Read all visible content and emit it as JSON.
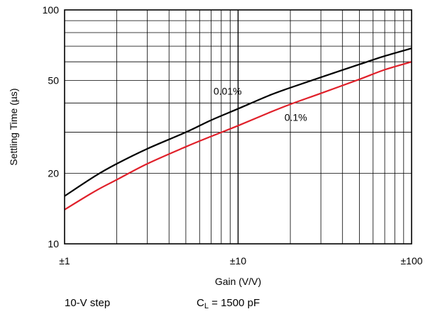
{
  "chart_data": {
    "type": "line",
    "title": "",
    "xlabel": "Gain (V/V)",
    "ylabel": "Settling Time (µs)",
    "x_scale": "log",
    "y_scale": "log",
    "xlim": [
      1,
      100
    ],
    "ylim": [
      10,
      100
    ],
    "grid": true,
    "x_ticks": [
      {
        "value": 1,
        "label": "±1"
      },
      {
        "value": 10,
        "label": "±10"
      },
      {
        "value": 100,
        "label": "±100"
      }
    ],
    "y_ticks": [
      {
        "value": 10,
        "label": "10"
      },
      {
        "value": 20,
        "label": "20"
      },
      {
        "value": 50,
        "label": "50"
      },
      {
        "value": 100,
        "label": "100"
      }
    ],
    "series": [
      {
        "name": "0.01%",
        "color": "#000000",
        "x": [
          1,
          1.5,
          2,
          3,
          5,
          7,
          10,
          15,
          20,
          30,
          50,
          70,
          100
        ],
        "y": [
          16.0,
          19.5,
          22.0,
          25.5,
          30.0,
          33.8,
          37.8,
          43.0,
          46.5,
          51.5,
          58.5,
          63.5,
          68.5
        ]
      },
      {
        "name": "0.1%",
        "color": "#e0202a",
        "x": [
          1,
          1.5,
          2,
          3,
          5,
          7,
          10,
          15,
          20,
          30,
          50,
          70,
          100
        ],
        "y": [
          14.0,
          16.8,
          18.8,
          22.0,
          26.0,
          28.8,
          32.0,
          36.3,
          39.5,
          44.0,
          50.5,
          55.5,
          60.0
        ]
      }
    ],
    "annotations": [
      {
        "text": "0.01%",
        "series": "0.01%",
        "x": 8.7,
        "y": 43.5
      },
      {
        "text": "0.1%",
        "series": "0.1%",
        "x": 21.5,
        "y": 33.5
      }
    ]
  },
  "footnotes": {
    "condition_1": "10-V step",
    "condition_2_prefix": "C",
    "condition_2_sub": "L",
    "condition_2_suffix": " = 1500 pF"
  }
}
